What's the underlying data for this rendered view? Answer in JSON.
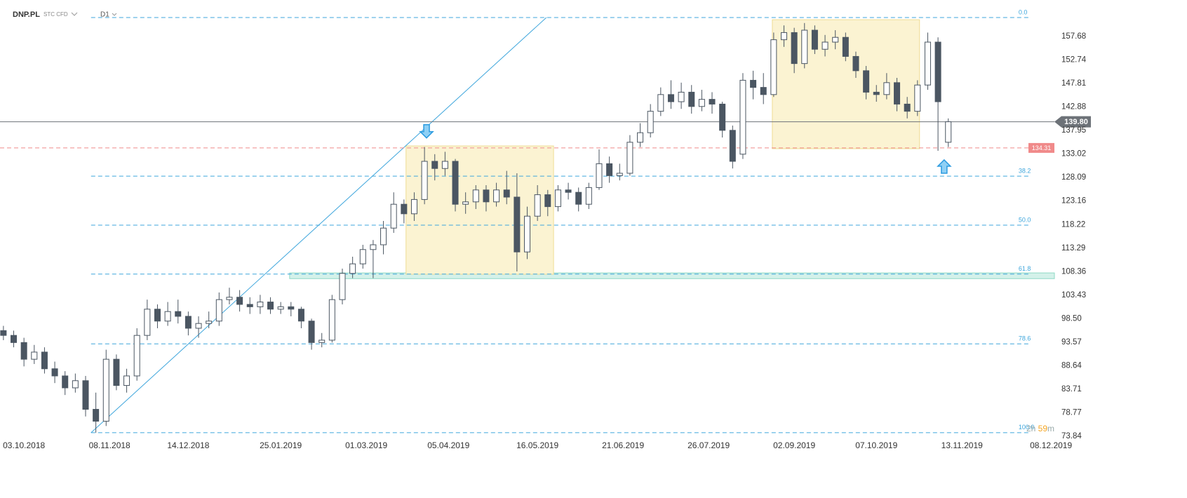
{
  "chart_data": {
    "type": "candlestick",
    "title": "DNP.PL",
    "subtitle": "STC CFD",
    "interval": "D1",
    "x": [
      1,
      4,
      7,
      10,
      13,
      16,
      19,
      22,
      25,
      28,
      31,
      34,
      37,
      40,
      43,
      46,
      49,
      52,
      55,
      58,
      61,
      64,
      67,
      70,
      73,
      76,
      79,
      82,
      85,
      88,
      91,
      94,
      97,
      100,
      103,
      106,
      109,
      112,
      115,
      118,
      121,
      124,
      127,
      130,
      133,
      136,
      139,
      142,
      145,
      148,
      151,
      154,
      157,
      160,
      163,
      166,
      169,
      172,
      175,
      178,
      181,
      184,
      187,
      190,
      193,
      196,
      199,
      202,
      205,
      208,
      211,
      214,
      217,
      220,
      223,
      226,
      229,
      232,
      235,
      238,
      241,
      244,
      247,
      250,
      253,
      256,
      259,
      262,
      265,
      268,
      271,
      274,
      277
    ],
    "open": [
      96,
      95,
      93.5,
      90,
      91.5,
      88,
      86.5,
      84,
      85.5,
      79.5,
      77,
      90,
      84.5,
      86.5,
      95,
      100.5,
      98,
      100,
      99,
      96.5,
      97.5,
      98,
      102.5,
      103,
      101.5,
      101,
      102,
      100.5,
      101,
      100.5,
      98,
      93.5,
      94,
      102.5,
      108,
      110,
      113,
      114,
      117.5,
      122.5,
      120.5,
      123.5,
      131.5,
      130,
      131.5,
      122.5,
      123,
      125.5,
      123,
      125.5,
      124,
      112.5,
      120,
      124.5,
      122,
      125.5,
      125,
      122.5,
      126,
      131,
      128.5,
      129,
      135.5,
      137.5,
      142,
      145.5,
      144,
      146,
      143,
      144.5,
      143.5,
      138,
      133,
      148.5,
      147,
      145.5,
      157,
      158.5,
      152,
      159,
      155,
      156.5,
      157.5,
      153.5,
      150.5,
      146,
      145.5,
      148,
      143.5,
      142,
      147.5,
      156.5,
      135.5
    ],
    "high": [
      97,
      96,
      94.5,
      93,
      92.5,
      89.5,
      87.5,
      87,
      86.5,
      83,
      92,
      91,
      88,
      96.5,
      102.5,
      101.5,
      102,
      102.5,
      100,
      99,
      100,
      104,
      105,
      104.5,
      103,
      103.5,
      103,
      102,
      102,
      101,
      98.5,
      95.5,
      103.5,
      109,
      111.5,
      114,
      115,
      119,
      125,
      123.5,
      125,
      134.5,
      133,
      133.5,
      132,
      125,
      126.5,
      126.5,
      127,
      129.5,
      129,
      122,
      126.5,
      125.5,
      126.5,
      127,
      126,
      127,
      134,
      132.5,
      131,
      137,
      139.5,
      143.5,
      147,
      148.5,
      148,
      147.5,
      146.5,
      146,
      144,
      139,
      150,
      150.5,
      150,
      158.5,
      160,
      159.5,
      160.5,
      160,
      158,
      159,
      158.5,
      154.5,
      151.5,
      147.5,
      150,
      149,
      145,
      148.5,
      158.5,
      157.5,
      140.5
    ],
    "low": [
      94,
      92.5,
      88.5,
      89,
      87,
      85,
      82.5,
      83,
      78,
      74.6,
      76,
      83.5,
      83,
      85.5,
      94,
      96.5,
      97,
      97.5,
      95,
      94.5,
      96.5,
      97,
      101.5,
      100,
      99.5,
      99.5,
      99.5,
      99.5,
      99,
      96.5,
      92,
      92.5,
      93.5,
      101.5,
      107,
      109,
      107,
      112,
      116.5,
      118.5,
      119,
      122.5,
      127.5,
      128.5,
      121,
      120.5,
      121.5,
      121,
      122,
      122.5,
      108.4,
      111,
      119,
      120,
      121,
      123.5,
      121,
      121.5,
      125.5,
      127,
      127.5,
      128.5,
      134.5,
      136.5,
      141,
      142.5,
      142.5,
      141.5,
      142,
      141.5,
      136.5,
      130,
      132,
      144.5,
      143.5,
      145,
      155.5,
      150,
      151,
      154,
      153.5,
      155,
      152.5,
      149,
      144.5,
      144,
      144.5,
      142,
      140.5,
      141,
      146.5,
      133.7,
      134.5
    ],
    "close": [
      95,
      93.5,
      90,
      91.5,
      88,
      86.5,
      84,
      85.5,
      79.5,
      77,
      90,
      84.5,
      86.5,
      95,
      100.5,
      98,
      100,
      99,
      96.5,
      97.5,
      98,
      102.5,
      103,
      101.5,
      101,
      102,
      100.5,
      101,
      100.5,
      98,
      93.5,
      94,
      102.5,
      108,
      110,
      113,
      114,
      117.5,
      122.5,
      120.5,
      123.5,
      131.5,
      130,
      131.5,
      122.5,
      123,
      125.5,
      123,
      125.5,
      124,
      112.5,
      120,
      124.5,
      122,
      125.5,
      125,
      122.5,
      126,
      131,
      128.5,
      129,
      135.5,
      137.5,
      142,
      145.5,
      144,
      146,
      143,
      144.5,
      143.5,
      138,
      131.5,
      148.5,
      147,
      145.5,
      157,
      158.5,
      152,
      159,
      155,
      156.5,
      157.5,
      153.5,
      150.5,
      146,
      145.5,
      148,
      143.5,
      142,
      147.5,
      156.5,
      144,
      139.8
    ],
    "up_color": "#ffffff",
    "down_color": "#4b5662",
    "xlim": [
      0,
      308
    ],
    "xticks": [
      {
        "value": 7,
        "label": "03.10.2018"
      },
      {
        "value": 32,
        "label": "08.11.2018"
      },
      {
        "value": 55,
        "label": "14.12.2018"
      },
      {
        "value": 82,
        "label": "25.01.2019"
      },
      {
        "value": 107,
        "label": "01.03.2019"
      },
      {
        "value": 131,
        "label": "05.04.2019"
      },
      {
        "value": 157,
        "label": "16.05.2019"
      },
      {
        "value": 182,
        "label": "21.06.2019"
      },
      {
        "value": 207,
        "label": "26.07.2019"
      },
      {
        "value": 232,
        "label": "02.09.2019"
      },
      {
        "value": 256,
        "label": "07.10.2019"
      },
      {
        "value": 281,
        "label": "13.11.2019"
      },
      {
        "value": 307,
        "label": "08.12.2019"
      }
    ],
    "ylim": [
      70.02,
      165.33
    ],
    "yticks": [
      73.84,
      78.77,
      83.71,
      88.64,
      93.57,
      {
        "value": 98.5,
        "label": "98.50"
      },
      103.43,
      108.36,
      113.29,
      118.22,
      123.16,
      128.09,
      133.02,
      137.95,
      142.88,
      147.81,
      152.74,
      157.68
    ],
    "last_price": {
      "value": 139.8,
      "label": "139.80",
      "color": "#6d7278"
    },
    "alert_line": {
      "value": 134.31,
      "label": "134.31",
      "color": "#f08a8a"
    },
    "fibonacci": {
      "color": "#3ea6dc",
      "x_range": [
        26.6,
        301.2
      ],
      "levels": [
        {
          "level": "0.0",
          "price": 161.65
        },
        {
          "level": "38.2",
          "price": 128.4
        },
        {
          "level": "50.0",
          "price": 118.12
        },
        {
          "level": "61.8",
          "price": 107.85
        },
        {
          "level": "78.6",
          "price": 93.23
        },
        {
          "level": "100.0",
          "price": 74.6
        }
      ]
    },
    "trend_line": {
      "x": [
        26.6,
        159.6
      ],
      "price": [
        74.6,
        161.65
      ],
      "color": "#3ea6dc"
    },
    "boxes": [
      {
        "x": [
          118.6,
          161.7
        ],
        "price": [
          107.82,
          134.73
        ]
      },
      {
        "x": [
          225.6,
          268.6
        ],
        "price": [
          134.15,
          161.2
        ]
      }
    ],
    "box_color": "#fbf3d2",
    "zone": {
      "x": [
        84.6,
        308
      ],
      "price": [
        106.9,
        108.1
      ],
      "color": "#d4f1ea"
    },
    "arrows": [
      {
        "direction": "down",
        "x": 124.6,
        "price": 136.4
      },
      {
        "direction": "up",
        "x": 275.8,
        "price": 131.8
      }
    ],
    "countdown": {
      "hours": "2h",
      "minutes": "59",
      "unit": "m"
    }
  }
}
